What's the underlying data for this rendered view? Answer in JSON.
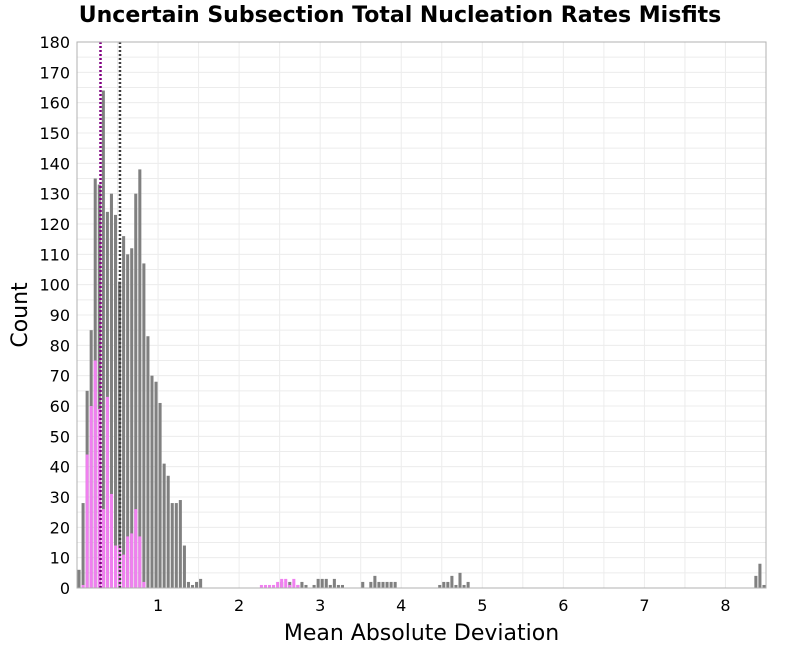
{
  "chart_data": {
    "type": "bar",
    "title": "Uncertain Subsection Total Nucleation Rates Misfits",
    "xlabel": "Mean Absolute Deviation",
    "ylabel": "Count",
    "xlim": [
      0,
      8.5
    ],
    "ylim": [
      0,
      180
    ],
    "xticks": [
      1,
      2,
      3,
      4,
      5,
      6,
      7,
      8
    ],
    "yticks": [
      0,
      10,
      20,
      30,
      40,
      50,
      60,
      70,
      80,
      90,
      100,
      110,
      120,
      130,
      140,
      150,
      160,
      170,
      180
    ],
    "grid": true,
    "colors": {
      "gray": "#808080",
      "pink": "#f080f0",
      "gray_line": "#404040",
      "purple_line": "#800080"
    },
    "series": [
      {
        "color": "#808080",
        "bin_width": 0.05,
        "bins": [
          [
            0.025,
            6
          ],
          [
            0.075,
            28
          ],
          [
            0.125,
            65
          ],
          [
            0.175,
            85
          ],
          [
            0.225,
            135
          ],
          [
            0.275,
            133
          ],
          [
            0.325,
            164
          ],
          [
            0.375,
            124
          ],
          [
            0.425,
            130
          ],
          [
            0.475,
            123
          ],
          [
            0.525,
            101
          ],
          [
            0.575,
            116
          ],
          [
            0.625,
            110
          ],
          [
            0.675,
            112
          ],
          [
            0.725,
            130
          ],
          [
            0.775,
            138
          ],
          [
            0.825,
            107
          ],
          [
            0.875,
            83
          ],
          [
            0.925,
            70
          ],
          [
            0.975,
            68
          ],
          [
            1.025,
            61
          ],
          [
            1.075,
            41
          ],
          [
            1.125,
            37
          ],
          [
            1.175,
            28
          ],
          [
            1.225,
            28
          ],
          [
            1.275,
            29
          ],
          [
            1.325,
            14
          ],
          [
            1.375,
            2
          ],
          [
            1.425,
            1
          ],
          [
            1.475,
            2
          ],
          [
            1.525,
            3
          ],
          [
            2.525,
            2
          ],
          [
            2.625,
            2
          ],
          [
            2.725,
            1
          ],
          [
            2.775,
            2
          ],
          [
            2.825,
            1
          ],
          [
            2.925,
            1
          ],
          [
            2.975,
            3
          ],
          [
            3.025,
            3
          ],
          [
            3.075,
            3
          ],
          [
            3.125,
            1
          ],
          [
            3.175,
            3
          ],
          [
            3.225,
            1
          ],
          [
            3.275,
            1
          ],
          [
            3.525,
            2
          ],
          [
            3.625,
            2
          ],
          [
            3.675,
            4
          ],
          [
            3.725,
            2
          ],
          [
            3.775,
            2
          ],
          [
            3.825,
            2
          ],
          [
            3.875,
            2
          ],
          [
            3.925,
            2
          ],
          [
            4.475,
            1
          ],
          [
            4.525,
            2
          ],
          [
            4.575,
            2
          ],
          [
            4.625,
            4
          ],
          [
            4.675,
            1
          ],
          [
            4.725,
            5
          ],
          [
            4.775,
            1
          ],
          [
            4.825,
            2
          ],
          [
            8.375,
            4
          ],
          [
            8.425,
            8
          ],
          [
            8.475,
            1
          ],
          [
            8.525,
            5
          ]
        ]
      },
      {
        "color": "#f080f0",
        "bin_width": 0.05,
        "bins": [
          [
            0.075,
            1
          ],
          [
            0.125,
            44
          ],
          [
            0.175,
            60
          ],
          [
            0.225,
            75
          ],
          [
            0.275,
            59
          ],
          [
            0.325,
            26
          ],
          [
            0.375,
            63
          ],
          [
            0.425,
            31
          ],
          [
            0.475,
            14
          ],
          [
            0.525,
            14
          ],
          [
            0.575,
            11
          ],
          [
            0.625,
            17
          ],
          [
            0.675,
            18
          ],
          [
            0.725,
            26
          ],
          [
            0.775,
            17
          ],
          [
            0.825,
            2
          ],
          [
            2.275,
            1
          ],
          [
            2.325,
            1
          ],
          [
            2.375,
            1
          ],
          [
            2.425,
            1
          ],
          [
            2.475,
            2
          ],
          [
            2.525,
            3
          ],
          [
            2.575,
            3
          ],
          [
            2.625,
            1
          ],
          [
            2.675,
            3
          ],
          [
            2.725,
            1
          ]
        ]
      }
    ],
    "reference_lines": [
      {
        "x": 0.29,
        "color": "#800080",
        "style": "dotted"
      },
      {
        "x": 0.53,
        "color": "#404040",
        "style": "dotted"
      }
    ]
  }
}
